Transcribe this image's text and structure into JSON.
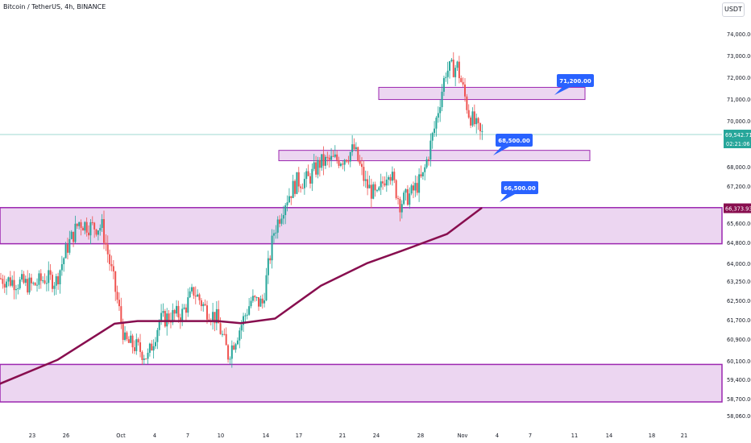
{
  "header": {
    "symbol": "Bitcoin / TetherUS, 4h, BINANCE",
    "currency": "USDT"
  },
  "colors": {
    "up": "#26a69a",
    "down": "#ef5350",
    "ma": "#880e4f",
    "zone_fill": "#e6c8ec",
    "zone_stroke": "#9c27b0",
    "callout_bg": "#2962ff",
    "price_line": "#9fd8d0"
  },
  "price_axis": {
    "ticks": [
      "74,000.00",
      "73,000.00",
      "72,000.00",
      "71,000.00",
      "70,000.00",
      "69,000.00",
      "68,000.00",
      "67,200.00",
      "66,300.00",
      "65,600.00",
      "64,800.00",
      "64,000.00",
      "63,250.00",
      "62,500.00",
      "61,700.00",
      "60,900.00",
      "60,100.00",
      "59,400.00",
      "58,700.00",
      "58,060.00"
    ],
    "last_price": "69,542.71",
    "countdown": "02:21:06",
    "ma_value": "66,373.93"
  },
  "time_axis": {
    "ticks": [
      "23",
      "26",
      "Oct",
      "4",
      "7",
      "10",
      "14",
      "17",
      "21",
      "24",
      "28",
      "Nov",
      "4",
      "7",
      "11",
      "14",
      "18",
      "21"
    ]
  },
  "chart_data": {
    "type": "candlestick",
    "symbol": "Bitcoin / TetherUS",
    "timeframe": "4h",
    "exchange": "BINANCE",
    "y_scale": "log",
    "ylim": [
      57800,
      74800
    ],
    "x_range": [
      "2024-09-20",
      "2024-11-22"
    ],
    "last_price": 69542.71,
    "moving_average_last": 66373.93,
    "zones": [
      {
        "low": 71100,
        "high": 71650
      },
      {
        "low": 68400,
        "high": 68850
      },
      {
        "low": 64900,
        "high": 66400
      },
      {
        "low": 58720,
        "high": 60130
      }
    ],
    "annotations": [
      {
        "label": "71,200.00",
        "price": 71200
      },
      {
        "label": "68,500.00",
        "price": 68500
      },
      {
        "label": "66,500.00",
        "price": 66500
      }
    ],
    "price_path": [
      {
        "date": "2024-09-20",
        "price": 63500
      },
      {
        "date": "2024-09-22",
        "price": 63300
      },
      {
        "date": "2024-09-23",
        "price": 63200
      },
      {
        "date": "2024-09-24",
        "price": 63500
      },
      {
        "date": "2024-09-25",
        "price": 63400
      },
      {
        "date": "2024-09-26",
        "price": 64800
      },
      {
        "date": "2024-09-27",
        "price": 65800
      },
      {
        "date": "2024-09-28",
        "price": 65600
      },
      {
        "date": "2024-09-29",
        "price": 65600
      },
      {
        "date": "2024-09-30",
        "price": 63400
      },
      {
        "date": "2024-10-01",
        "price": 61000
      },
      {
        "date": "2024-10-02",
        "price": 60800
      },
      {
        "date": "2024-10-03",
        "price": 60400
      },
      {
        "date": "2024-10-04",
        "price": 61800
      },
      {
        "date": "2024-10-05",
        "price": 62000
      },
      {
        "date": "2024-10-06",
        "price": 62100
      },
      {
        "date": "2024-10-07",
        "price": 63000
      },
      {
        "date": "2024-10-08",
        "price": 62300
      },
      {
        "date": "2024-10-09",
        "price": 61900
      },
      {
        "date": "2024-10-10",
        "price": 60500
      },
      {
        "date": "2024-10-11",
        "price": 61500
      },
      {
        "date": "2024-10-12",
        "price": 62600
      },
      {
        "date": "2024-10-13",
        "price": 62500
      },
      {
        "date": "2024-10-14",
        "price": 65400
      },
      {
        "date": "2024-10-15",
        "price": 66700
      },
      {
        "date": "2024-10-16",
        "price": 67500
      },
      {
        "date": "2024-10-17",
        "price": 67600
      },
      {
        "date": "2024-10-18",
        "price": 68300
      },
      {
        "date": "2024-10-19",
        "price": 68400
      },
      {
        "date": "2024-10-20",
        "price": 68500
      },
      {
        "date": "2024-10-21",
        "price": 68900
      },
      {
        "date": "2024-10-22",
        "price": 67400
      },
      {
        "date": "2024-10-23",
        "price": 66800
      },
      {
        "date": "2024-10-24",
        "price": 68100
      },
      {
        "date": "2024-10-25",
        "price": 66600
      },
      {
        "date": "2024-10-26",
        "price": 67000
      },
      {
        "date": "2024-10-27",
        "price": 67700
      },
      {
        "date": "2024-10-28",
        "price": 69800
      },
      {
        "date": "2024-10-29",
        "price": 72400
      },
      {
        "date": "2024-10-30",
        "price": 72600
      },
      {
        "date": "2024-10-31",
        "price": 70500
      },
      {
        "date": "2024-11-01",
        "price": 69540
      }
    ],
    "moving_average": [
      {
        "date": "2024-09-20",
        "price": 59400
      },
      {
        "date": "2024-09-25",
        "price": 60300
      },
      {
        "date": "2024-09-30",
        "price": 61700
      },
      {
        "date": "2024-10-02",
        "price": 61800
      },
      {
        "date": "2024-10-09",
        "price": 61800
      },
      {
        "date": "2024-10-11",
        "price": 61720
      },
      {
        "date": "2024-10-14",
        "price": 61900
      },
      {
        "date": "2024-10-18",
        "price": 63200
      },
      {
        "date": "2024-10-22",
        "price": 64100
      },
      {
        "date": "2024-10-25",
        "price": 64600
      },
      {
        "date": "2024-10-29",
        "price": 65300
      },
      {
        "date": "2024-11-01",
        "price": 66374
      }
    ]
  }
}
